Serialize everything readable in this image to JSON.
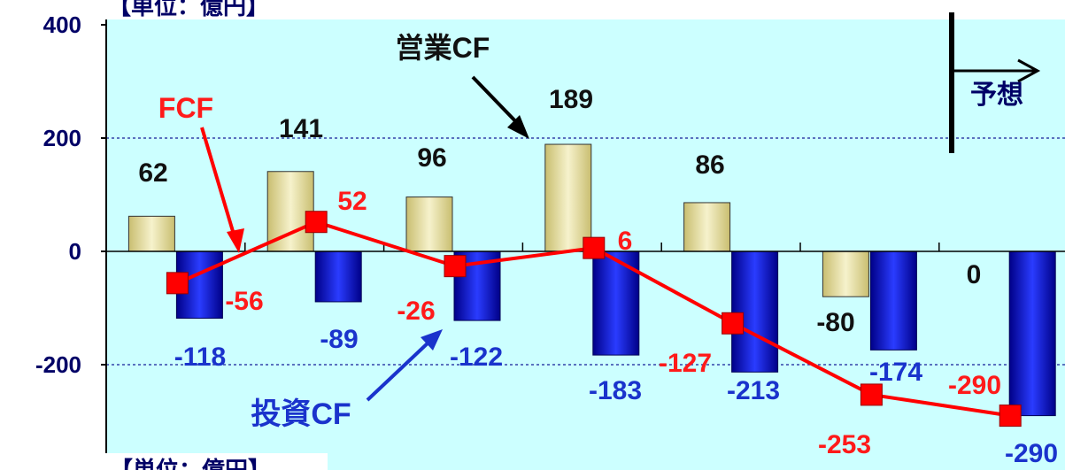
{
  "unit_label": "【単位：億円】",
  "forecast_label": "予想",
  "annotations": {
    "op": "営業CF",
    "fcf": "FCF",
    "inv": "投資CF"
  },
  "colors": {
    "plot_bg": "#ccffff",
    "op_bar": "#e8e0a0",
    "inv_bar": "#0000cc",
    "fcf_line": "#ff0000",
    "op_label": "#111111",
    "inv_label": "#1a33cc",
    "fcf_label": "#ff1a1a",
    "axis_label": "#000066"
  },
  "chart_data": {
    "type": "bar",
    "title": "",
    "ylim": [
      -340,
      420
    ],
    "yticks": [
      "400",
      "200",
      "0",
      "-200"
    ],
    "grid": true,
    "series": [
      {
        "name": "営業CF",
        "type": "bar",
        "values": [
          62,
          141,
          96,
          189,
          86,
          -80,
          0
        ],
        "labels": [
          "62",
          "141",
          "96",
          "189",
          "86",
          "-80",
          "0"
        ]
      },
      {
        "name": "投資CF",
        "type": "bar",
        "values": [
          -118,
          -89,
          -122,
          -183,
          -213,
          -174,
          -290
        ],
        "labels": [
          "-118",
          "-89",
          "-122",
          "-183",
          "-213",
          "-174",
          "-290"
        ]
      },
      {
        "name": "FCF",
        "type": "line",
        "values": [
          -56,
          52,
          -26,
          6,
          -127,
          -253,
          -290
        ],
        "labels": [
          "-56",
          "52",
          "-26",
          "6",
          "-127",
          "-253",
          "-290"
        ]
      }
    ]
  }
}
